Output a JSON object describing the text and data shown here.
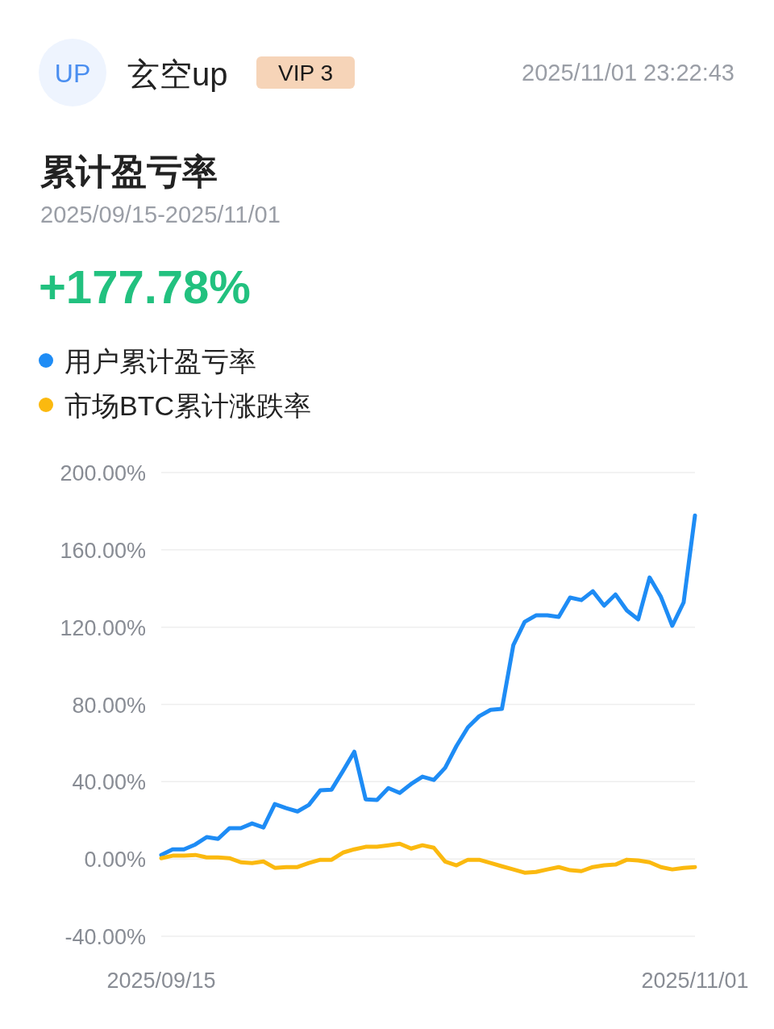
{
  "chart_data": {
    "type": "line",
    "title": "累计盈亏率",
    "subtitle": "2025/09/15-2025/11/01",
    "annotations": [
      "UP",
      "玄空up",
      "VIP 3",
      "2025/11/01 23:22:43",
      "+177.78%"
    ],
    "x": [
      "2025-09-15",
      "2025-09-16",
      "2025-09-17",
      "2025-09-18",
      "2025-09-19",
      "2025-09-20",
      "2025-09-21",
      "2025-09-22",
      "2025-09-23",
      "2025-09-24",
      "2025-09-25",
      "2025-09-26",
      "2025-09-27",
      "2025-09-28",
      "2025-09-29",
      "2025-09-30",
      "2025-10-01",
      "2025-10-02",
      "2025-10-03",
      "2025-10-04",
      "2025-10-05",
      "2025-10-06",
      "2025-10-07",
      "2025-10-08",
      "2025-10-09",
      "2025-10-10",
      "2025-10-11",
      "2025-10-12",
      "2025-10-13",
      "2025-10-14",
      "2025-10-15",
      "2025-10-16",
      "2025-10-17",
      "2025-10-18",
      "2025-10-19",
      "2025-10-20",
      "2025-10-21",
      "2025-10-22",
      "2025-10-23",
      "2025-10-24",
      "2025-10-25",
      "2025-10-26",
      "2025-10-27",
      "2025-10-28",
      "2025-10-29",
      "2025-10-30",
      "2025-10-31",
      "2025-11-01"
    ],
    "series": [
      {
        "name": "用户累计盈亏率",
        "color": "#1e8cf5",
        "values": [
          2.1,
          5.0,
          5.0,
          7.5,
          11.3,
          10.4,
          15.9,
          15.9,
          18.4,
          16.3,
          28.4,
          26.3,
          24.6,
          28.0,
          35.5,
          35.9,
          45.5,
          55.5,
          30.9,
          30.5,
          36.7,
          34.2,
          38.8,
          42.6,
          40.9,
          47.2,
          58.5,
          68.1,
          73.9,
          77.2,
          77.7,
          110.6,
          122.7,
          126.1,
          126.1,
          125.3,
          135.3,
          134.0,
          138.6,
          131.1,
          136.9,
          128.6,
          124.0,
          145.7,
          135.7,
          120.7,
          132.8,
          177.8
        ]
      },
      {
        "name": "市场BTC累计涨跌率",
        "color": "#fbb90f",
        "values": [
          0.4,
          1.7,
          1.7,
          2.1,
          0.8,
          0.8,
          0.4,
          -1.7,
          -2.1,
          -1.3,
          -4.6,
          -4.2,
          -4.2,
          -2.1,
          -0.4,
          -0.4,
          3.3,
          5.0,
          6.3,
          6.3,
          7.1,
          7.9,
          5.4,
          7.1,
          5.8,
          -1.3,
          -3.3,
          -0.4,
          -0.4,
          -2.1,
          -3.8,
          -5.4,
          -7.1,
          -6.7,
          -5.4,
          -4.2,
          -5.8,
          -6.3,
          -4.2,
          -3.3,
          -2.9,
          -0.4,
          -0.8,
          -1.7,
          -4.2,
          -5.4,
          -4.6,
          -4.2
        ]
      }
    ],
    "xlim": [
      "2025-09-15",
      "2025-11-01"
    ],
    "xticks": [
      {
        "value": "2025-09-15",
        "label": "2025/09/15"
      },
      {
        "value": "2025-11-01",
        "label": "2025/11/01"
      }
    ],
    "ylim": [
      -40,
      200
    ],
    "yticks": [
      {
        "value": -40,
        "label": "-40.00%"
      },
      {
        "value": 0,
        "label": "0.00%"
      },
      {
        "value": 40,
        "label": "40.00%"
      },
      {
        "value": 80,
        "label": "80.00%"
      },
      {
        "value": 120,
        "label": "120.00%"
      },
      {
        "value": 160,
        "label": "160.00%"
      },
      {
        "value": 200,
        "label": "200.00%"
      }
    ],
    "grid": "y",
    "legend": "top left",
    "marker": "none",
    "line_style": "solid"
  }
}
